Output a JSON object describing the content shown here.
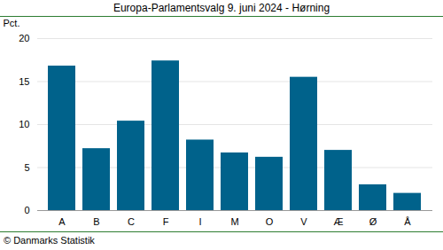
{
  "chart_data": {
    "type": "bar",
    "title": "Europa-Parlamentsvalg 9. juni 2024 - Hørning",
    "y_label": "Pct.",
    "caption": "© Danmarks Statistik",
    "categories": [
      "A",
      "B",
      "C",
      "F",
      "I",
      "M",
      "O",
      "V",
      "Æ",
      "Ø",
      "Å"
    ],
    "values": [
      16.8,
      7.2,
      10.4,
      17.4,
      8.2,
      6.7,
      6.2,
      15.5,
      7.0,
      3.0,
      2.0
    ],
    "color": "#00628b",
    "ylim": [
      0,
      20
    ],
    "yticks": [
      0,
      5,
      10,
      15,
      20
    ],
    "grid": true
  }
}
